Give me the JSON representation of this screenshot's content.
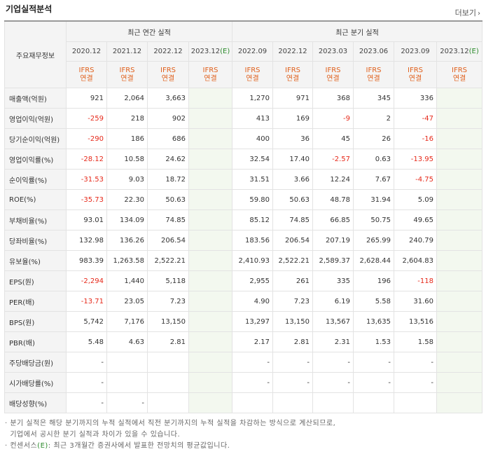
{
  "title": "기업실적분석",
  "more_label": "더보기",
  "header": {
    "label": "주요재무정보",
    "annual_group": "최근 연간 실적",
    "quarter_group": "최근 분기 실적",
    "annual_years": [
      "2020.12",
      "2021.12",
      "2022.12",
      "2023.12"
    ],
    "annual_est_suffix": "(E)",
    "quarter_years": [
      "2022.09",
      "2022.12",
      "2023.03",
      "2023.06",
      "2023.09",
      "2023.12"
    ],
    "quarter_est_suffix": "(E)",
    "ifrs_top": "IFRS",
    "ifrs_bottom": "연결"
  },
  "rows": [
    {
      "label": "매출액(억원)",
      "values": [
        "921",
        "2,064",
        "3,663",
        "",
        "1,270",
        "971",
        "368",
        "345",
        "336",
        ""
      ]
    },
    {
      "label": "영업이익(억원)",
      "values": [
        "-259",
        "218",
        "902",
        "",
        "413",
        "169",
        "-9",
        "2",
        "-47",
        ""
      ]
    },
    {
      "label": "당기순이익(억원)",
      "values": [
        "-290",
        "186",
        "686",
        "",
        "400",
        "36",
        "45",
        "26",
        "-16",
        ""
      ]
    },
    {
      "label": "영업이익률(%)",
      "values": [
        "-28.12",
        "10.58",
        "24.62",
        "",
        "32.54",
        "17.40",
        "-2.57",
        "0.63",
        "-13.95",
        ""
      ]
    },
    {
      "label": "순이익률(%)",
      "values": [
        "-31.53",
        "9.03",
        "18.72",
        "",
        "31.51",
        "3.66",
        "12.24",
        "7.67",
        "-4.75",
        ""
      ]
    },
    {
      "label": "ROE(%)",
      "values": [
        "-35.73",
        "22.30",
        "50.63",
        "",
        "59.80",
        "50.63",
        "48.78",
        "31.94",
        "5.09",
        ""
      ]
    },
    {
      "label": "부채비율(%)",
      "values": [
        "93.01",
        "134.09",
        "74.85",
        "",
        "85.12",
        "74.85",
        "66.85",
        "50.75",
        "49.65",
        ""
      ]
    },
    {
      "label": "당좌비율(%)",
      "values": [
        "132.98",
        "136.26",
        "206.54",
        "",
        "183.56",
        "206.54",
        "207.19",
        "265.99",
        "240.79",
        ""
      ]
    },
    {
      "label": "유보율(%)",
      "values": [
        "983.39",
        "1,263.58",
        "2,522.21",
        "",
        "2,410.93",
        "2,522.21",
        "2,589.37",
        "2,628.44",
        "2,604.83",
        ""
      ]
    },
    {
      "label": "EPS(원)",
      "values": [
        "-2,294",
        "1,440",
        "5,118",
        "",
        "2,955",
        "261",
        "335",
        "196",
        "-118",
        ""
      ]
    },
    {
      "label": "PER(배)",
      "values": [
        "-13.71",
        "23.05",
        "7.23",
        "",
        "4.90",
        "7.23",
        "6.19",
        "5.58",
        "31.60",
        ""
      ]
    },
    {
      "label": "BPS(원)",
      "values": [
        "5,742",
        "7,176",
        "13,150",
        "",
        "13,297",
        "13,150",
        "13,567",
        "13,635",
        "13,516",
        ""
      ]
    },
    {
      "label": "PBR(배)",
      "values": [
        "5.48",
        "4.63",
        "2.81",
        "",
        "2.17",
        "2.81",
        "2.31",
        "1.53",
        "1.58",
        ""
      ]
    },
    {
      "label": "주당배당금(원)",
      "values": [
        "-",
        "",
        "",
        "",
        "-",
        "-",
        "-",
        "-",
        "-",
        ""
      ]
    },
    {
      "label": "시가배당률(%)",
      "values": [
        "-",
        "",
        "",
        "",
        "-",
        "-",
        "-",
        "-",
        "-",
        ""
      ]
    },
    {
      "label": "배당성향(%)",
      "values": [
        "-",
        "-",
        "",
        "",
        "",
        "",
        "",
        "",
        "",
        ""
      ]
    }
  ],
  "notes": {
    "line1": "· 분기 실적은 해당 분기까지의 누적 실적에서 직전 분기까지의 누적 실적을 차감하는 방식으로 계산되므로,",
    "line2": "  기업에서 공시한 분기 실적과 차이가 있을 수 있습니다.",
    "line3_prefix": "· 컨센서스",
    "line3_e": "(E)",
    "line3_suffix": ": 최근 3개월간 증권사에서 발표한 전망치의 평균값입니다."
  }
}
